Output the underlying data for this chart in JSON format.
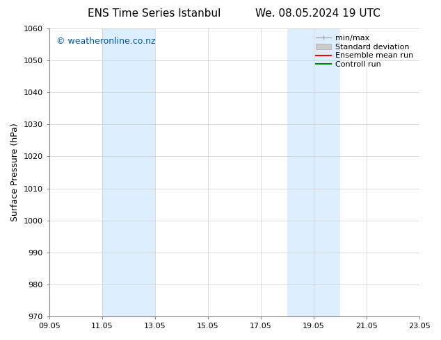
{
  "title_left": "ENS Time Series Istanbul",
  "title_right": "We. 08.05.2024 19 UTC",
  "ylabel": "Surface Pressure (hPa)",
  "ylim": [
    970,
    1060
  ],
  "yticks": [
    970,
    980,
    990,
    1000,
    1010,
    1020,
    1030,
    1040,
    1050,
    1060
  ],
  "xticks_labels": [
    "09.05",
    "11.05",
    "13.05",
    "15.05",
    "17.05",
    "19.05",
    "21.05",
    "23.05"
  ],
  "xtick_values": [
    0,
    2,
    4,
    6,
    8,
    10,
    12,
    14
  ],
  "xlim": [
    0,
    14
  ],
  "shade_bands": [
    {
      "x_start": 2.0,
      "x_end": 4.0
    },
    {
      "x_start": 9.0,
      "x_end": 11.0
    }
  ],
  "watermark": "© weatheronline.co.nz",
  "watermark_color": "#0055aa",
  "bg_color": "#ffffff",
  "shade_color": "#ddeeff",
  "grid_color": "#cccccc",
  "grid_lw": 0.5,
  "spine_color": "#888888",
  "legend_items": [
    {
      "label": "min/max",
      "color": "#aaaaaa",
      "lw": 1.0
    },
    {
      "label": "Standard deviation",
      "color": "#cccccc",
      "lw": 5
    },
    {
      "label": "Ensemble mean run",
      "color": "#ff0000",
      "lw": 1.5
    },
    {
      "label": "Controll run",
      "color": "#008800",
      "lw": 1.5
    }
  ],
  "title_fontsize": 11,
  "tick_fontsize": 8,
  "label_fontsize": 9,
  "legend_fontsize": 8,
  "watermark_fontsize": 9
}
